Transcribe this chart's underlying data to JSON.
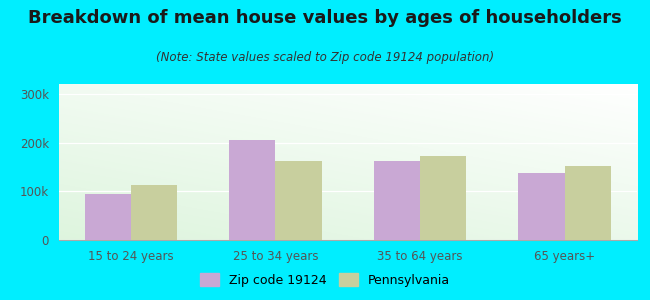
{
  "title": "Breakdown of mean house values by ages of householders",
  "subtitle": "(Note: State values scaled to Zip code 19124 population)",
  "categories": [
    "15 to 24 years",
    "25 to 34 years",
    "35 to 64 years",
    "65 years+"
  ],
  "zip_values": [
    95000,
    205000,
    162000,
    138000
  ],
  "pa_values": [
    112000,
    163000,
    172000,
    152000
  ],
  "zip_color": "#c9a8d4",
  "pa_color": "#c8cf9e",
  "background_outer": "#00eeff",
  "ylim": [
    0,
    320000
  ],
  "yticks": [
    0,
    100000,
    200000,
    300000
  ],
  "ytick_labels": [
    "0",
    "100k",
    "200k",
    "300k"
  ],
  "bar_width": 0.32,
  "legend_zip": "Zip code 19124",
  "legend_pa": "Pennsylvania",
  "title_fontsize": 13,
  "subtitle_fontsize": 8.5,
  "tick_fontsize": 8.5,
  "legend_fontsize": 9,
  "title_color": "#1a1a1a",
  "subtitle_color": "#333333",
  "tick_color": "#555555"
}
